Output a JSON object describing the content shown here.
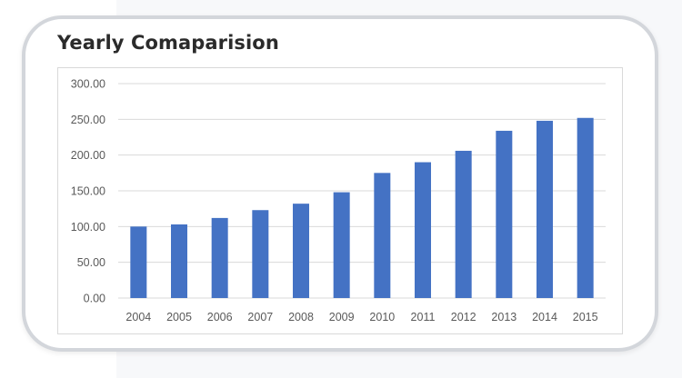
{
  "chart_data": {
    "type": "bar",
    "title": "Yearly Comaparision",
    "categories": [
      "2004",
      "2005",
      "2006",
      "2007",
      "2008",
      "2009",
      "2010",
      "2011",
      "2012",
      "2013",
      "2014",
      "2015"
    ],
    "values": [
      100,
      103,
      112,
      123,
      132,
      148,
      175,
      190,
      206,
      234,
      248,
      252
    ],
    "ylim": [
      0,
      300
    ],
    "yticks": [
      "0.00",
      "50.00",
      "100.00",
      "150.00",
      "200.00",
      "250.00",
      "300.00"
    ],
    "grid": true,
    "legend": "none",
    "bar_color": "#4472c4",
    "grid_color": "#d9d9d9"
  }
}
